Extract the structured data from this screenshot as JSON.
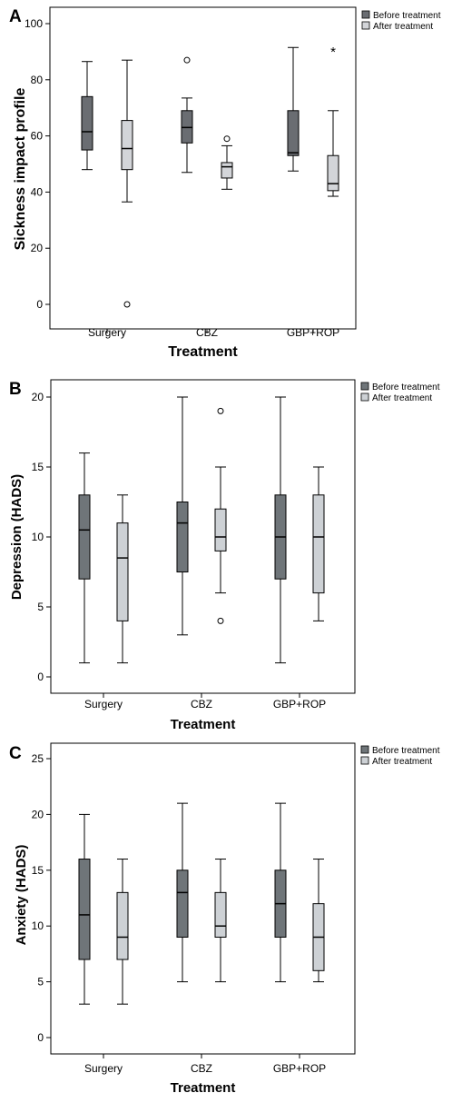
{
  "chart_data": [
    {
      "type": "boxplot",
      "panel": "A",
      "xlabel": "Treatment",
      "ylabel": "Sickness impact profile",
      "ylim": [
        0,
        100
      ],
      "yticks": [
        0,
        20,
        40,
        60,
        80,
        100
      ],
      "categories": [
        "Surgery",
        "CBZ",
        "GBP+ROP"
      ],
      "legend": {
        "position": "top-right outside",
        "entries": [
          "Before treatment",
          "After treatment"
        ]
      },
      "series": [
        {
          "name": "Before treatment",
          "color": "#6a6d72",
          "boxes": [
            {
              "min": 48,
              "q1": 55,
              "median": 61.5,
              "q3": 74,
              "max": 86.5,
              "outliers": [],
              "extremes": []
            },
            {
              "min": 47,
              "q1": 57.5,
              "median": 63,
              "q3": 69,
              "max": 73.5,
              "outliers": [
                87
              ],
              "extremes": []
            },
            {
              "min": 47.5,
              "q1": 53,
              "median": 54,
              "q3": 69,
              "max": 91.5,
              "outliers": [],
              "extremes": []
            }
          ]
        },
        {
          "name": "After treatment",
          "color": "#d3d5d9",
          "boxes": [
            {
              "min": 36.5,
              "q1": 48,
              "median": 55.5,
              "q3": 65.5,
              "max": 87,
              "outliers": [
                0
              ],
              "extremes": []
            },
            {
              "min": 41,
              "q1": 45,
              "median": 49,
              "q3": 50.5,
              "max": 56.5,
              "outliers": [
                59
              ],
              "extremes": []
            },
            {
              "min": 38.5,
              "q1": 40.5,
              "median": 43,
              "q3": 53,
              "max": 69,
              "outliers": [],
              "extremes": [
                91
              ]
            }
          ]
        }
      ]
    },
    {
      "type": "boxplot",
      "panel": "B",
      "xlabel": "Treatment",
      "ylabel": "Depression (HADS)",
      "ylim": [
        0,
        20
      ],
      "yticks": [
        0,
        5,
        10,
        15,
        20
      ],
      "categories": [
        "Surgery",
        "CBZ",
        "GBP+ROP"
      ],
      "legend": {
        "position": "top-right outside",
        "entries": [
          "Before treatment",
          "After treatment"
        ]
      },
      "series": [
        {
          "name": "Before treatment",
          "color": "#6f7579",
          "boxes": [
            {
              "min": 1,
              "q1": 7,
              "median": 10.5,
              "q3": 13,
              "max": 16,
              "outliers": [],
              "extremes": []
            },
            {
              "min": 3,
              "q1": 7.5,
              "median": 11,
              "q3": 12.5,
              "max": 20,
              "outliers": [],
              "extremes": []
            },
            {
              "min": 1,
              "q1": 7,
              "median": 10,
              "q3": 13,
              "max": 20,
              "outliers": [],
              "extremes": []
            }
          ]
        },
        {
          "name": "After treatment",
          "color": "#cdd1d5",
          "boxes": [
            {
              "min": 1,
              "q1": 4,
              "median": 8.5,
              "q3": 11,
              "max": 13,
              "outliers": [],
              "extremes": []
            },
            {
              "min": 6,
              "q1": 9,
              "median": 10,
              "q3": 12,
              "max": 15,
              "outliers": [
                4,
                19
              ],
              "extremes": []
            },
            {
              "min": 4,
              "q1": 6,
              "median": 10,
              "q3": 13,
              "max": 15,
              "outliers": [],
              "extremes": []
            }
          ]
        }
      ]
    },
    {
      "type": "boxplot",
      "panel": "C",
      "xlabel": "Treatment",
      "ylabel": "Anxiety (HADS)",
      "ylim": [
        0,
        25
      ],
      "yticks": [
        0,
        5,
        10,
        15,
        20,
        25
      ],
      "categories": [
        "Surgery",
        "CBZ",
        "GBP+ROP"
      ],
      "legend": {
        "position": "top-right outside",
        "entries": [
          "Before treatment",
          "After treatment"
        ]
      },
      "series": [
        {
          "name": "Before treatment",
          "color": "#6f7579",
          "boxes": [
            {
              "min": 3,
              "q1": 7,
              "median": 11,
              "q3": 16,
              "max": 20,
              "outliers": [],
              "extremes": []
            },
            {
              "min": 5,
              "q1": 9,
              "median": 13,
              "q3": 15,
              "max": 21,
              "outliers": [],
              "extremes": []
            },
            {
              "min": 5,
              "q1": 9,
              "median": 12,
              "q3": 15,
              "max": 21,
              "outliers": [],
              "extremes": []
            }
          ]
        },
        {
          "name": "After treatment",
          "color": "#cdd1d5",
          "boxes": [
            {
              "min": 3,
              "q1": 7,
              "median": 9,
              "q3": 13,
              "max": 16,
              "outliers": [],
              "extremes": []
            },
            {
              "min": 5,
              "q1": 9,
              "median": 10,
              "q3": 13,
              "max": 16,
              "outliers": [],
              "extremes": []
            },
            {
              "min": 5,
              "q1": 6,
              "median": 9,
              "q3": 12,
              "max": 16,
              "outliers": [],
              "extremes": []
            }
          ]
        }
      ]
    }
  ]
}
